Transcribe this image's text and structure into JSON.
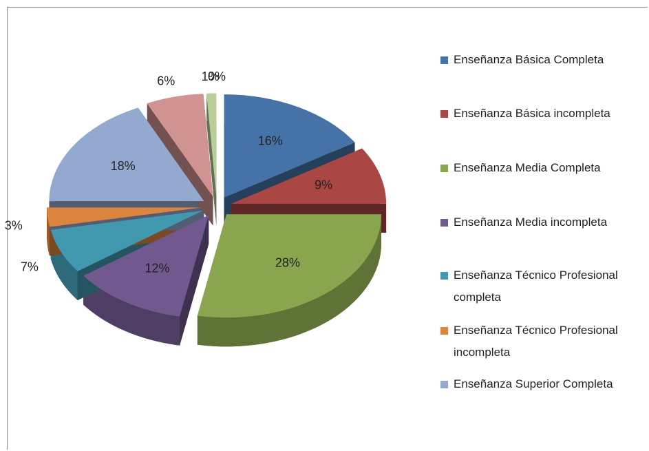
{
  "chart_data": {
    "type": "pie",
    "categories": [
      "Enseñanza Básica Completa",
      "Enseñanza Básica incompleta",
      "Enseñanza Media Completa",
      "Enseñanza Media incompleta",
      "Enseñanza Técnico Profesional completa",
      "Enseñanza Técnico Profesional incompleta",
      "Enseñanza Superior Completa",
      null,
      null,
      null
    ],
    "values": [
      16,
      9,
      28,
      12,
      7,
      3,
      18,
      6,
      1,
      0
    ],
    "value_labels": [
      "16%",
      "9%",
      "28%",
      "12%",
      "7%",
      "3%",
      "18%",
      "6%",
      "1%",
      "0%"
    ],
    "colors": [
      "#4572a7",
      "#aa4643",
      "#89a54e",
      "#71588f",
      "#4198af",
      "#db843d",
      "#93a9cf",
      "#d19392",
      "#b9cd96",
      "#a99bbd"
    ],
    "legend": "right"
  }
}
